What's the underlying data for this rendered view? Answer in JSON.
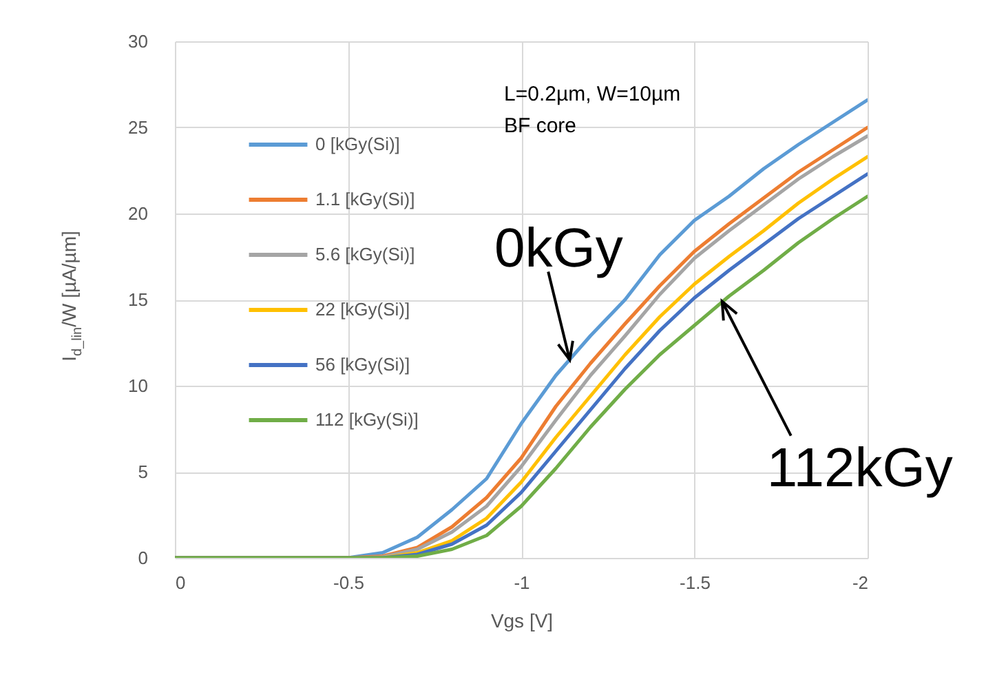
{
  "chart_data": {
    "type": "line",
    "xlabel": "Vgs [V]",
    "ylabel": "I$_{d_lin}$/W [µA/µm]",
    "x": [
      0,
      -0.5,
      -0.6,
      -0.7,
      -0.8,
      -0.9,
      -1.0,
      -1.1,
      -1.2,
      -1.3,
      -1.4,
      -1.5,
      -1.6,
      -1.7,
      -1.8,
      -1.9,
      -2.0
    ],
    "series": [
      {
        "name": "0 [kGy(Si)]",
        "color": "#5b9bd5",
        "values": [
          0,
          0,
          0.3,
          1.2,
          2.8,
          4.6,
          7.8,
          10.6,
          12.9,
          15.0,
          17.6,
          19.6,
          21.0,
          22.6,
          24.0,
          25.3,
          26.6
        ]
      },
      {
        "name": "1.1 [kGy(Si)]",
        "color": "#ed7d31",
        "values": [
          0,
          0,
          0.1,
          0.6,
          1.8,
          3.5,
          5.8,
          8.8,
          11.3,
          13.6,
          15.8,
          17.8,
          19.4,
          20.9,
          22.4,
          23.7,
          25.0
        ]
      },
      {
        "name": "5.6 [kGy(Si)]",
        "color": "#a5a5a5",
        "values": [
          0,
          0,
          0.05,
          0.5,
          1.5,
          3.0,
          5.3,
          8.0,
          10.6,
          12.9,
          15.3,
          17.4,
          19.0,
          20.5,
          22.0,
          23.3,
          24.5
        ]
      },
      {
        "name": "22 [kGy(Si)]",
        "color": "#ffc000",
        "values": [
          0,
          0,
          0,
          0.3,
          1.0,
          2.3,
          4.4,
          7.0,
          9.4,
          11.8,
          14.0,
          15.9,
          17.5,
          19.0,
          20.6,
          22.0,
          23.3
        ]
      },
      {
        "name": "56 [kGy(Si)]",
        "color": "#4472c4",
        "values": [
          0,
          0,
          0,
          0.2,
          0.8,
          1.9,
          3.8,
          6.2,
          8.6,
          11.0,
          13.2,
          15.1,
          16.7,
          18.2,
          19.7,
          21.0,
          22.3
        ]
      },
      {
        "name": "112 [kGy(Si)]",
        "color": "#70ad47",
        "values": [
          0,
          0,
          0,
          0.1,
          0.5,
          1.3,
          3.0,
          5.2,
          7.6,
          9.8,
          11.8,
          13.5,
          15.2,
          16.7,
          18.3,
          19.7,
          21.0
        ]
      }
    ],
    "xlim": [
      0,
      -2
    ],
    "xticks": [
      0,
      -0.5,
      -1,
      -1.5,
      -2
    ],
    "ylim": [
      0,
      30
    ],
    "yticks": [
      0,
      5,
      10,
      15,
      20,
      25,
      30
    ],
    "grid": true,
    "legend": "top left",
    "annotations": [
      "L=0.2µm, W=10µm",
      "BF core",
      {
        "text": "0kGy",
        "x": -1.14,
        "y": 11.5
      },
      {
        "text": "112kGy",
        "x": -1.58,
        "y": 14.9
      }
    ]
  }
}
